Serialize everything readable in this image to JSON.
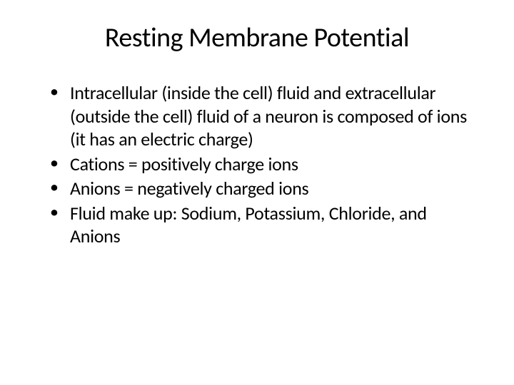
{
  "slide": {
    "title": "Resting Membrane Potential",
    "title_fontsize": 38,
    "title_color": "#000000",
    "body_fontsize": 26,
    "body_color": "#000000",
    "background_color": "#ffffff",
    "bullets": [
      "Intracellular (inside the cell) fluid and extracellular (outside the cell) fluid of a neuron is composed of ions (it has an electric charge)",
      "Cations = positively charge ions",
      "Anions = negatively charged ions",
      "Fluid make up: Sodium, Potassium, Chloride, and Anions"
    ]
  }
}
